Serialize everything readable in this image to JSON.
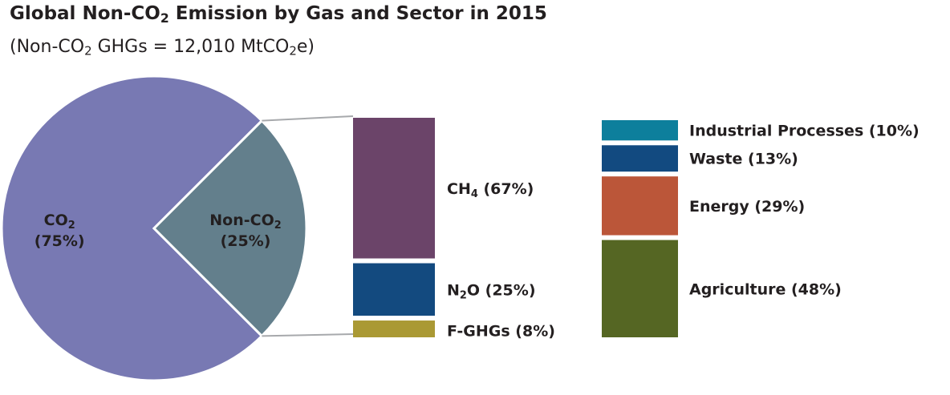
{
  "title": {
    "pre": "Global Non-CO",
    "sub": "2",
    "post": " Emission by Gas and Sector in 2015"
  },
  "subtitle": {
    "pre": "(Non-CO",
    "sub1": "2",
    "mid": " GHGs = 12,010 MtCO",
    "sub2": "2",
    "post": "e)"
  },
  "chart_data": [
    {
      "type": "pie",
      "slices": [
        {
          "id": "co2",
          "value": 75,
          "color": "#7879b3",
          "label_pre": "CO",
          "label_sub": "2",
          "label_post": "",
          "pct": "(75%)"
        },
        {
          "id": "nonco2",
          "value": 25,
          "color": "#637f8c",
          "label_pre": "Non-CO",
          "label_sub": "2",
          "label_post": "",
          "pct": "(25%)"
        }
      ]
    },
    {
      "type": "bar",
      "stacked": true,
      "segments": [
        {
          "id": "ch4",
          "value": 67,
          "color": "#6b4469",
          "label_pre": "CH",
          "label_sub": "4",
          "label_post": " (67%)"
        },
        {
          "id": "n2o",
          "value": 25,
          "color": "#134a7f",
          "label_pre": "N",
          "label_sub": "2",
          "label_post": "O (25%)"
        },
        {
          "id": "fghg",
          "value": 8,
          "color": "#aa9934",
          "label_pre": "F-GHGs (8%)",
          "label_sub": "",
          "label_post": ""
        }
      ]
    },
    {
      "type": "bar",
      "stacked": true,
      "segments": [
        {
          "id": "industrial",
          "value": 10,
          "color": "#0d7f9c",
          "label_pre": "Industrial Processes (10%)",
          "label_sub": "",
          "label_post": ""
        },
        {
          "id": "waste",
          "value": 13,
          "color": "#124a80",
          "label_pre": "Waste (13%)",
          "label_sub": "",
          "label_post": ""
        },
        {
          "id": "energy",
          "value": 29,
          "color": "#bb5639",
          "label_pre": "Energy (29%)",
          "label_sub": "",
          "label_post": ""
        },
        {
          "id": "agriculture",
          "value": 48,
          "color": "#556623",
          "label_pre": "Agriculture (48%)",
          "label_sub": "",
          "label_post": ""
        }
      ]
    }
  ]
}
